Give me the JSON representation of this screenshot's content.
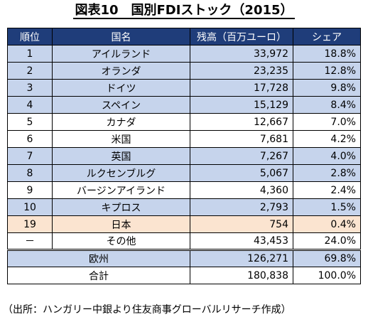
{
  "title": "図表10　国別FDIストック（2015）",
  "headers": {
    "rank": "順位",
    "country": "国名",
    "amount": "残高（百万ユーロ）",
    "share": "シェア"
  },
  "rows": [
    {
      "rank": "1",
      "country": "アイルランド",
      "amount": "33,972",
      "share": "18.8%",
      "style": "blue"
    },
    {
      "rank": "2",
      "country": "オランダ",
      "amount": "23,235",
      "share": "12.8%",
      "style": "blue"
    },
    {
      "rank": "3",
      "country": "ドイツ",
      "amount": "17,728",
      "share": "9.8%",
      "style": "blue"
    },
    {
      "rank": "4",
      "country": "スペイン",
      "amount": "15,129",
      "share": "8.4%",
      "style": "blue"
    },
    {
      "rank": "5",
      "country": "カナダ",
      "amount": "12,667",
      "share": "7.0%",
      "style": "white"
    },
    {
      "rank": "6",
      "country": "米国",
      "amount": "7,681",
      "share": "4.2%",
      "style": "white"
    },
    {
      "rank": "7",
      "country": "英国",
      "amount": "7,267",
      "share": "4.0%",
      "style": "blue"
    },
    {
      "rank": "8",
      "country": "ルクセンブルグ",
      "amount": "5,067",
      "share": "2.8%",
      "style": "blue"
    },
    {
      "rank": "9",
      "country": "バージンアイランド",
      "amount": "4,360",
      "share": "2.4%",
      "style": "white"
    },
    {
      "rank": "10",
      "country": "キプロス",
      "amount": "2,793",
      "share": "1.5%",
      "style": "blue"
    },
    {
      "rank": "19",
      "country": "日本",
      "amount": "754",
      "share": "0.4%",
      "style": "peach"
    },
    {
      "rank": "－",
      "country": "その他",
      "amount": "43,453",
      "share": "24.0%",
      "style": "white"
    }
  ],
  "summary_rows": [
    {
      "label": "欧州",
      "amount": "126,271",
      "share": "69.8%",
      "style": "summary"
    },
    {
      "label": "合計",
      "amount": "180,838",
      "share": "100.0%",
      "style": "total"
    }
  ],
  "source": "（出所：ハンガリー中銀より住友商事グローバルリサーチ作成）",
  "colors": {
    "header_bg": "#1f3d7a",
    "row_blue": "#c6d4ec",
    "row_peach": "#fbe4d0"
  }
}
